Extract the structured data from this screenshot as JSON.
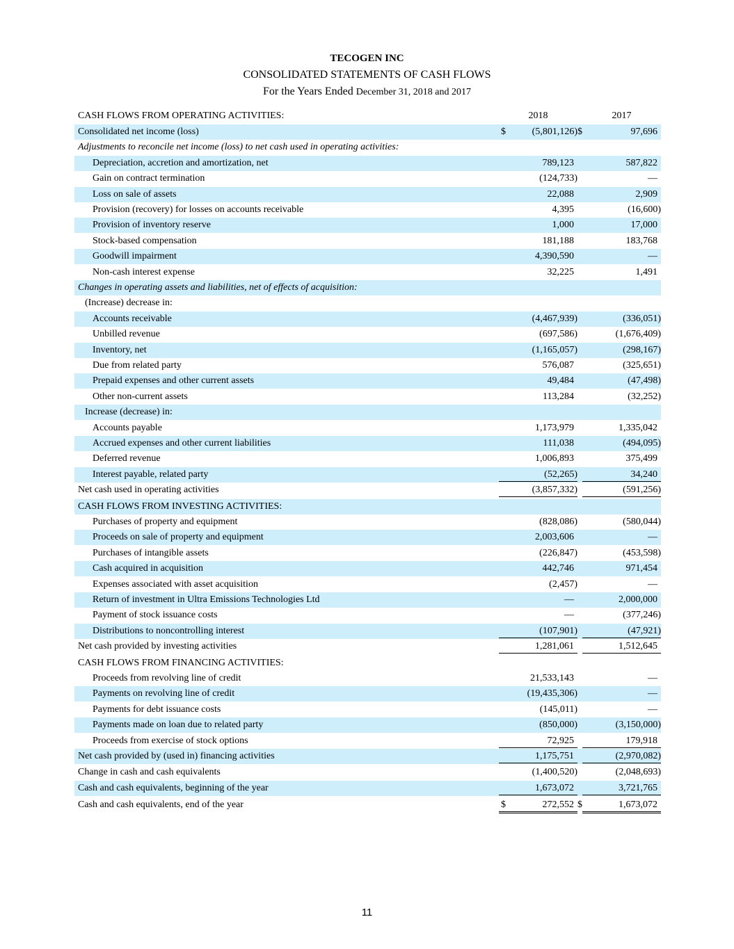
{
  "header": {
    "company": "TECOGEN INC",
    "title": "CONSOLIDATED STATEMENTS OF CASH FLOWS",
    "subtitle": "For the Years Ended",
    "subtitle_date": "December 31, 2018 and 2017"
  },
  "table": {
    "columns": [
      "CASH FLOWS FROM OPERATING ACTIVITIES:",
      "2018",
      "2017"
    ],
    "currency": "$",
    "rows": [
      {
        "label": "Consolidated net income (loss)",
        "values": [
          "(5,801,126)",
          "97,696"
        ]
      },
      {
        "label": "Adjustments to reconcile net income (loss) to net cash used in operating activities:",
        "values": [
          "",
          ""
        ]
      },
      {
        "label": "Depreciation, accretion and amortization, net",
        "values": [
          "789,123",
          "587,822"
        ]
      },
      {
        "label": "Gain on contract termination",
        "values": [
          "(124,733)",
          "—"
        ]
      },
      {
        "label": "Loss on sale of assets",
        "values": [
          "22,088",
          "2,909"
        ]
      },
      {
        "label": "Provision (recovery) for losses on accounts receivable",
        "values": [
          "4,395",
          "(16,600)"
        ]
      },
      {
        "label": "Provision of inventory reserve",
        "values": [
          "1,000",
          "17,000"
        ]
      },
      {
        "label": "Stock-based compensation",
        "values": [
          "181,188",
          "183,768"
        ]
      },
      {
        "label": "Goodwill impairment",
        "values": [
          "4,390,590",
          "—"
        ]
      },
      {
        "label": "Non-cash interest expense",
        "values": [
          "32,225",
          "1,491"
        ]
      },
      {
        "label": "Changes in operating assets and liabilities, net of effects of acquisition:",
        "values": [
          "",
          ""
        ]
      },
      {
        "label": "(Increase) decrease in:",
        "values": [
          "",
          ""
        ]
      },
      {
        "label": "Accounts receivable",
        "values": [
          "(4,467,939)",
          "(336,051)"
        ]
      },
      {
        "label": "Unbilled revenue",
        "values": [
          "(697,586)",
          "(1,676,409)"
        ]
      },
      {
        "label": "Inventory, net",
        "values": [
          "(1,165,057)",
          "(298,167)"
        ]
      },
      {
        "label": "Due from related party",
        "values": [
          "576,087",
          "(325,651)"
        ]
      },
      {
        "label": "Prepaid expenses and other current assets",
        "values": [
          "49,484",
          "(47,498)"
        ]
      },
      {
        "label": "Other non-current assets",
        "values": [
          "113,284",
          "(32,252)"
        ]
      },
      {
        "label": "Increase (decrease) in:",
        "values": [
          "",
          ""
        ]
      },
      {
        "label": "Accounts payable",
        "values": [
          "1,173,979",
          "1,335,042"
        ]
      },
      {
        "label": "Accrued expenses and other current liabilities",
        "values": [
          "111,038",
          "(494,095)"
        ]
      },
      {
        "label": "Deferred revenue",
        "values": [
          "1,006,893",
          "375,499"
        ]
      },
      {
        "label": "Interest payable, related party",
        "values": [
          "(52,265)",
          "34,240"
        ]
      },
      {
        "label": "Net cash used in operating activities",
        "values": [
          "(3,857,332)",
          "(591,256)"
        ]
      },
      {
        "label": "CASH FLOWS FROM INVESTING ACTIVITIES:",
        "values": [
          "",
          ""
        ]
      },
      {
        "label": "Purchases of property and equipment",
        "values": [
          "(828,086)",
          "(580,044)"
        ]
      },
      {
        "label": "Proceeds on sale of property and equipment",
        "values": [
          "2,003,606",
          "—"
        ]
      },
      {
        "label": "Purchases of intangible assets",
        "values": [
          "(226,847)",
          "(453,598)"
        ]
      },
      {
        "label": "Cash acquired in acquisition",
        "values": [
          "442,746",
          "971,454"
        ]
      },
      {
        "label": "Expenses associated with asset acquisition",
        "values": [
          "(2,457)",
          "—"
        ]
      },
      {
        "label": "Return of investment in Ultra Emissions Technologies Ltd",
        "values": [
          "—",
          "2,000,000"
        ]
      },
      {
        "label": "Payment of stock issuance costs",
        "values": [
          "—",
          "(377,246)"
        ]
      },
      {
        "label": "Distributions to noncontrolling interest",
        "values": [
          "(107,901)",
          "(47,921)"
        ]
      },
      {
        "label": "Net cash provided by investing activities",
        "values": [
          "1,281,061",
          "1,512,645"
        ]
      },
      {
        "label": "CASH FLOWS FROM FINANCING ACTIVITIES:",
        "values": [
          "",
          ""
        ]
      },
      {
        "label": "Proceeds from revolving line of credit",
        "values": [
          "21,533,143",
          "—"
        ]
      },
      {
        "label": "Payments on revolving line of credit",
        "values": [
          "(19,435,306)",
          "—"
        ]
      },
      {
        "label": "Payments for debt issuance costs",
        "values": [
          "(145,011)",
          "—"
        ]
      },
      {
        "label": "Payments made on loan due to related party",
        "values": [
          "(850,000)",
          "(3,150,000)"
        ]
      },
      {
        "label": "Proceeds from exercise of stock options",
        "values": [
          "72,925",
          "179,918"
        ]
      },
      {
        "label": "Net cash provided by (used in) financing activities",
        "values": [
          "1,175,751",
          "(2,970,082)"
        ]
      },
      {
        "label": "Change in cash and cash equivalents",
        "values": [
          "(1,400,520)",
          "(2,048,693)"
        ]
      },
      {
        "label": "Cash and cash equivalents, beginning of the year",
        "values": [
          "1,673,072",
          "3,721,765"
        ]
      },
      {
        "label": "Cash and cash equivalents, end of the year",
        "values": [
          "272,552",
          "1,673,072"
        ]
      }
    ]
  },
  "footer": {
    "page": "11"
  }
}
